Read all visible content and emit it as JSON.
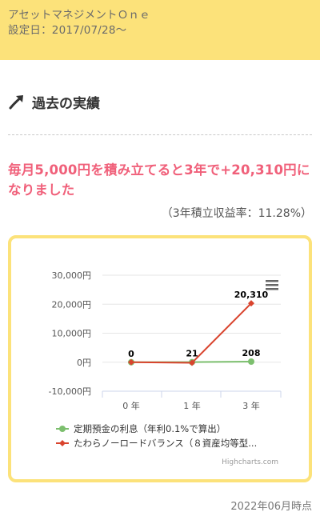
{
  "header": {
    "fund_name": "アセットマネジメントＯｎｅ",
    "start_date": "設定日：2017/07/28～"
  },
  "section": {
    "title": "過去の実績",
    "icon": "trend-up-arrow-icon"
  },
  "result": {
    "headline": "毎月5,000円を積み立てると3年で+20,310円になりました",
    "subline": "（3年積立収益率：11.28%）"
  },
  "chart_data": {
    "type": "line",
    "categories": [
      "0 年",
      "1 年",
      "3 年"
    ],
    "yticks": [
      "30,000円",
      "20,000円",
      "10,000円",
      "0円",
      "-10,000円"
    ],
    "ylim": [
      -10000,
      30000
    ],
    "series": [
      {
        "name": "定期預金の利息（年利0.1%で算出）",
        "color": "#7cbf6e",
        "values": [
          0,
          21,
          208
        ],
        "labels": [
          "0",
          "21",
          "208"
        ]
      },
      {
        "name": "たわらノーロードバランス（８資産均等型...",
        "color": "#d9442e",
        "values": [
          0,
          -200,
          20310
        ],
        "labels": [
          "",
          "",
          "20,310"
        ]
      }
    ],
    "credit": "Highcharts.com"
  },
  "footer": {
    "as_of": "2022年06月時点"
  }
}
